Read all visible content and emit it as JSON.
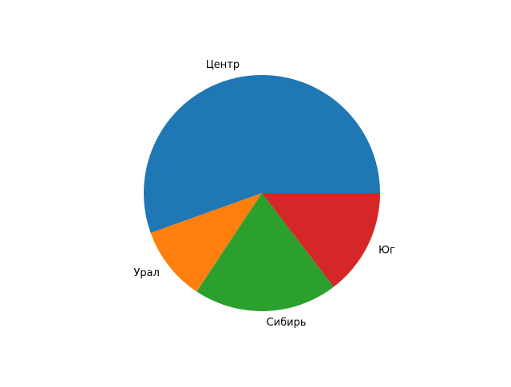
{
  "chart_data": {
    "type": "pie",
    "categories": [
      "Центр",
      "Урал",
      "Сибирь",
      "Юг"
    ],
    "values": [
      380,
      70,
      135,
      100
    ],
    "colors": [
      "#1f77b4",
      "#ff7f0e",
      "#2ca02c",
      "#d62728"
    ],
    "start_angle_deg": 0,
    "direction": "counterclockwise",
    "title": "",
    "legend": "none"
  }
}
